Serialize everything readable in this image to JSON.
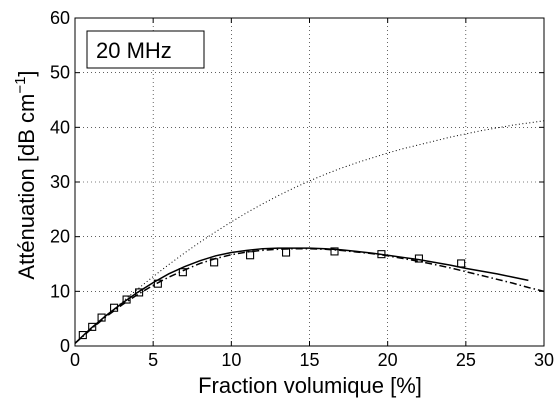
{
  "chart_data": {
    "type": "line",
    "annotation": "20 MHz",
    "xlabel": "Fraction volumique [%]",
    "ylabel_main": "Atténuation [dB cm",
    "ylabel_sup": "−1",
    "ylabel_end": "]",
    "xlim": [
      0,
      30
    ],
    "ylim": [
      0,
      60
    ],
    "xticks": [
      0,
      5,
      10,
      15,
      20,
      25,
      30
    ],
    "yticks": [
      0,
      10,
      20,
      30,
      40,
      50,
      60
    ],
    "grid": true,
    "series": [
      {
        "style": "solid",
        "color": "#000000",
        "x": [
          0,
          1,
          2,
          3,
          4,
          5,
          6,
          7,
          8,
          9,
          10,
          11,
          12,
          13,
          14,
          15,
          16,
          17,
          18,
          19,
          20,
          21,
          22,
          23,
          24,
          25,
          26,
          27,
          28,
          29
        ],
        "y": [
          0.5,
          3.2,
          5.6,
          7.8,
          9.8,
          11.6,
          13.2,
          14.5,
          15.6,
          16.5,
          17.1,
          17.5,
          17.8,
          17.9,
          17.9,
          17.9,
          17.8,
          17.6,
          17.3,
          17.0,
          16.6,
          16.2,
          15.8,
          15.3,
          14.8,
          14.2,
          13.7,
          13.2,
          12.6,
          12.0
        ]
      },
      {
        "style": "dashdot",
        "color": "#000000",
        "x": [
          0,
          1,
          2,
          3,
          4,
          5,
          6,
          7,
          8,
          9,
          10,
          11,
          12,
          13,
          14,
          15,
          16,
          17,
          18,
          19,
          20,
          21,
          22,
          23,
          24,
          25,
          26,
          27,
          28,
          29,
          30
        ],
        "y": [
          0.5,
          3.0,
          5.4,
          7.5,
          9.4,
          11.1,
          12.6,
          13.9,
          15.1,
          16.0,
          16.7,
          17.2,
          17.5,
          17.7,
          17.8,
          17.8,
          17.7,
          17.5,
          17.2,
          16.9,
          16.5,
          16.0,
          15.5,
          14.9,
          14.3,
          13.6,
          12.9,
          12.2,
          11.5,
          10.7,
          10.0
        ]
      },
      {
        "style": "dotted",
        "color": "#000000",
        "x": [
          0,
          1,
          2,
          3,
          4,
          5,
          6,
          7,
          8,
          9,
          10,
          11,
          12,
          13,
          14,
          15,
          16,
          17,
          18,
          19,
          20,
          21,
          22,
          23,
          24,
          25,
          26,
          27,
          28,
          29,
          30
        ],
        "y": [
          0.5,
          3.0,
          5.5,
          8.0,
          10.4,
          12.7,
          14.9,
          17.0,
          19.0,
          20.9,
          22.7,
          24.4,
          26.0,
          27.5,
          28.9,
          30.2,
          31.4,
          32.5,
          33.5,
          34.4,
          35.3,
          36.1,
          36.8,
          37.5,
          38.2,
          38.8,
          39.4,
          39.9,
          40.4,
          40.8,
          41.2
        ]
      },
      {
        "style": "markers",
        "marker": "square",
        "color": "#000000",
        "x": [
          0.5,
          1.1,
          1.7,
          2.5,
          3.3,
          4.1,
          5.3,
          6.9,
          8.9,
          11.2,
          13.5,
          16.6,
          19.6,
          22.0,
          24.7
        ],
        "y": [
          2.0,
          3.5,
          5.2,
          7.0,
          8.5,
          9.8,
          11.4,
          13.5,
          15.3,
          16.6,
          17.1,
          17.3,
          16.8,
          16.0,
          15.1
        ]
      }
    ]
  }
}
